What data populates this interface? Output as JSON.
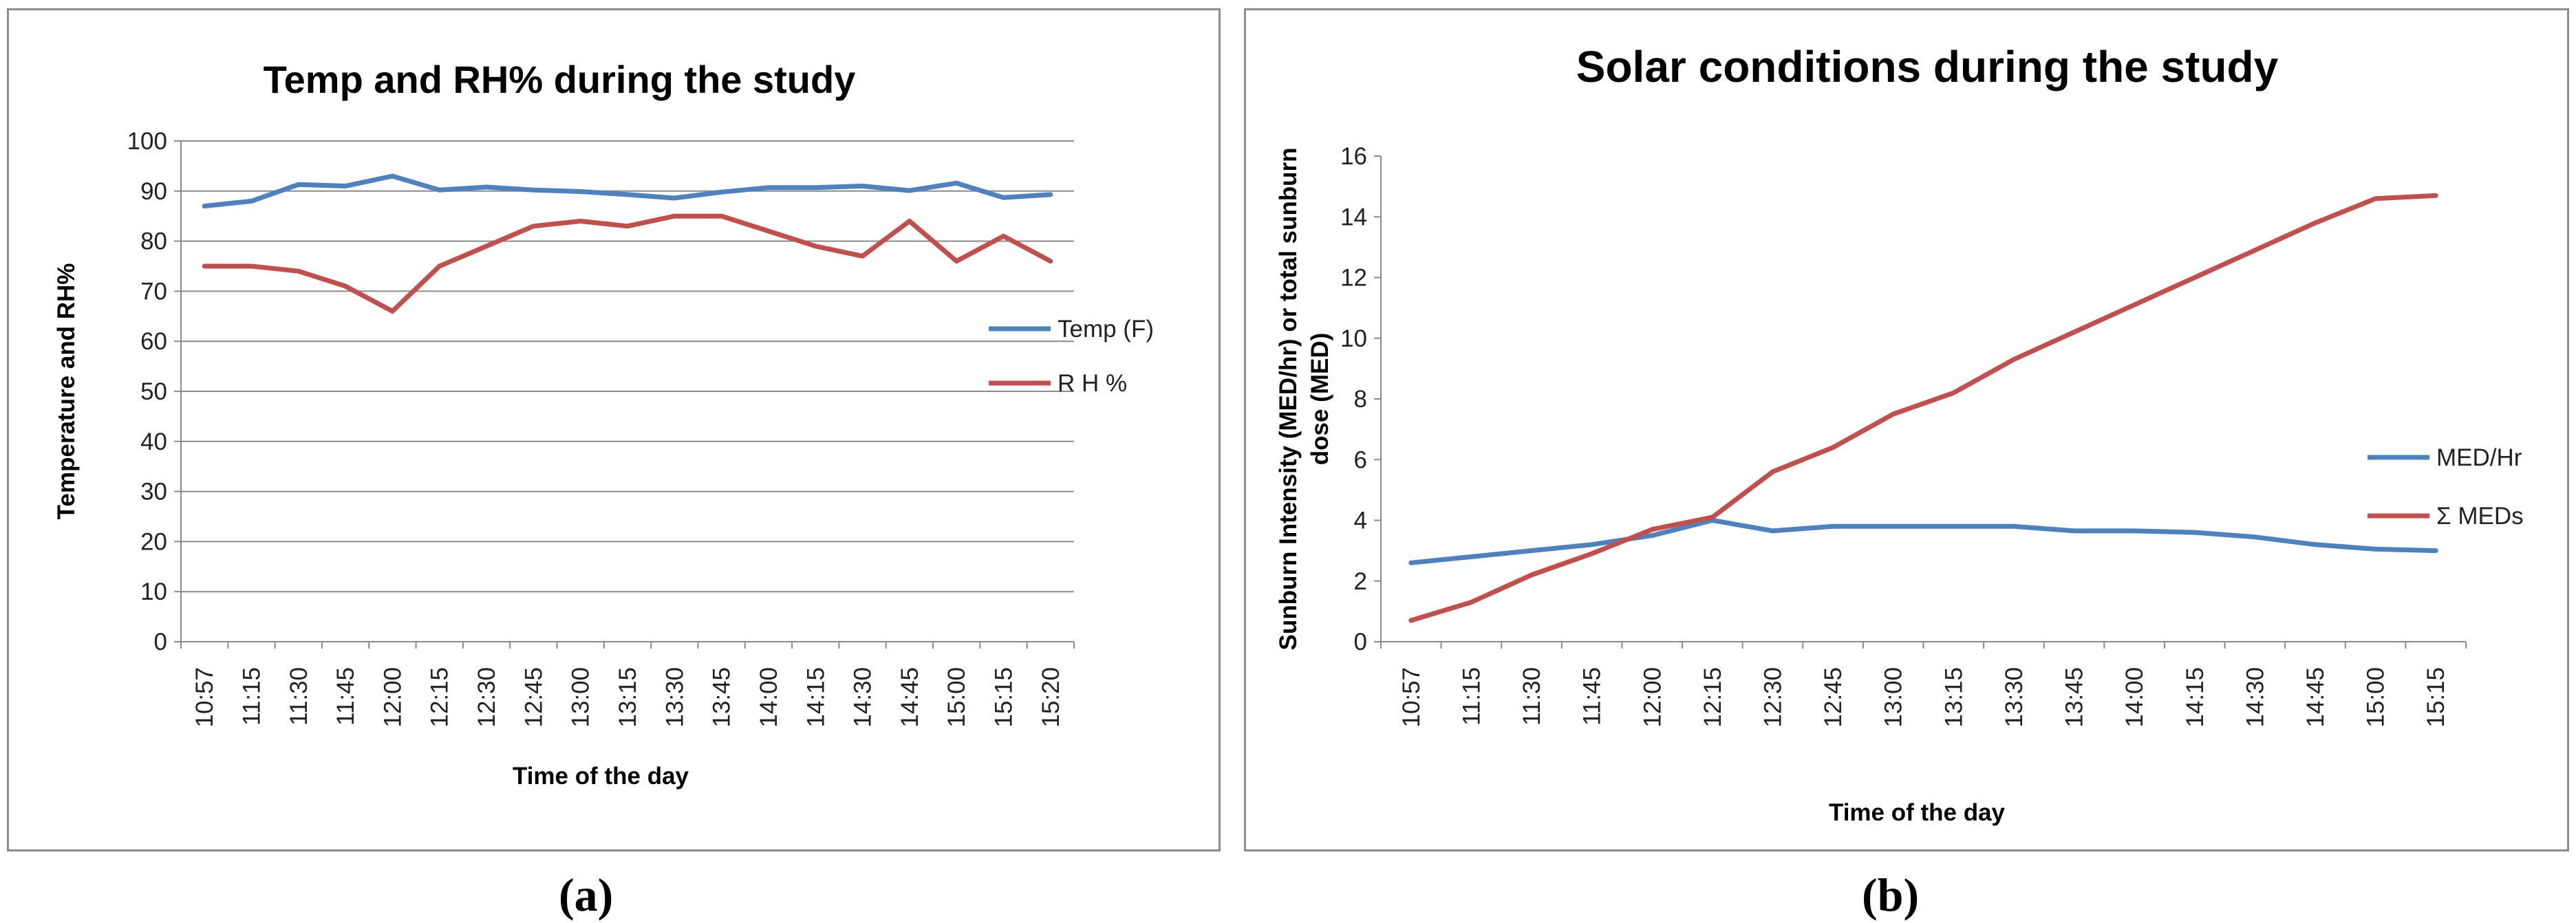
{
  "chart_data": [
    {
      "id": "a",
      "type": "line",
      "caption": "(a)",
      "title": "Temp and RH% during the study",
      "xlabel": "Time of the day",
      "ylabel": "Temperature and RH%",
      "ylim": [
        0,
        100
      ],
      "ytick_step": 10,
      "grid": true,
      "legend_position": "right",
      "categories": [
        "10:57",
        "11:15",
        "11:30",
        "11:45",
        "12:00",
        "12:15",
        "12:30",
        "12:45",
        "13:00",
        "13:15",
        "13:30",
        "13:45",
        "14:00",
        "14:15",
        "14:30",
        "14:45",
        "15:00",
        "15:15",
        "15:20"
      ],
      "series": [
        {
          "name": "Temp (F)",
          "color": "#4f81bd",
          "values": [
            87,
            88,
            91.3,
            91,
            93,
            90.2,
            90.8,
            90.2,
            89.9,
            89.3,
            88.6,
            89.8,
            90.7,
            90.7,
            91,
            90.1,
            91.6,
            88.7,
            89.3
          ]
        },
        {
          "name": "R H %",
          "color": "#c0504d",
          "values": [
            75,
            75,
            74,
            71,
            66,
            75,
            79,
            83,
            84,
            83,
            85,
            85,
            82,
            79,
            77,
            84,
            76,
            81,
            76
          ]
        }
      ]
    },
    {
      "id": "b",
      "type": "line",
      "caption": "(b)",
      "title": "Solar conditions during the study",
      "xlabel": "Time of the day",
      "ylabel_line1": "Sunburn Intensity (MED/hr) or total sunburn",
      "ylabel_line2": "dose (MED)",
      "ylim": [
        0,
        16
      ],
      "ytick_step": 2,
      "grid": false,
      "legend_position": "right",
      "categories": [
        "10:57",
        "11:15",
        "11:30",
        "11:45",
        "12:00",
        "12:15",
        "12:30",
        "12:45",
        "13:00",
        "13:15",
        "13:30",
        "13:45",
        "14:00",
        "14:15",
        "14:30",
        "14:45",
        "15:00",
        "15:15"
      ],
      "series": [
        {
          "name": "MED/Hr",
          "color": "#4f81bd",
          "values": [
            2.6,
            2.8,
            3.0,
            3.2,
            3.5,
            4.0,
            3.65,
            3.8,
            3.8,
            3.8,
            3.8,
            3.65,
            3.65,
            3.6,
            3.45,
            3.2,
            3.05,
            3.0
          ]
        },
        {
          "name": "Σ MEDs",
          "color": "#c0504d",
          "values": [
            0.7,
            1.3,
            2.2,
            2.9,
            3.7,
            4.1,
            5.6,
            6.4,
            7.5,
            8.2,
            9.3,
            10.2,
            11.1,
            12.0,
            12.9,
            13.8,
            14.6,
            14.7
          ]
        }
      ]
    }
  ]
}
